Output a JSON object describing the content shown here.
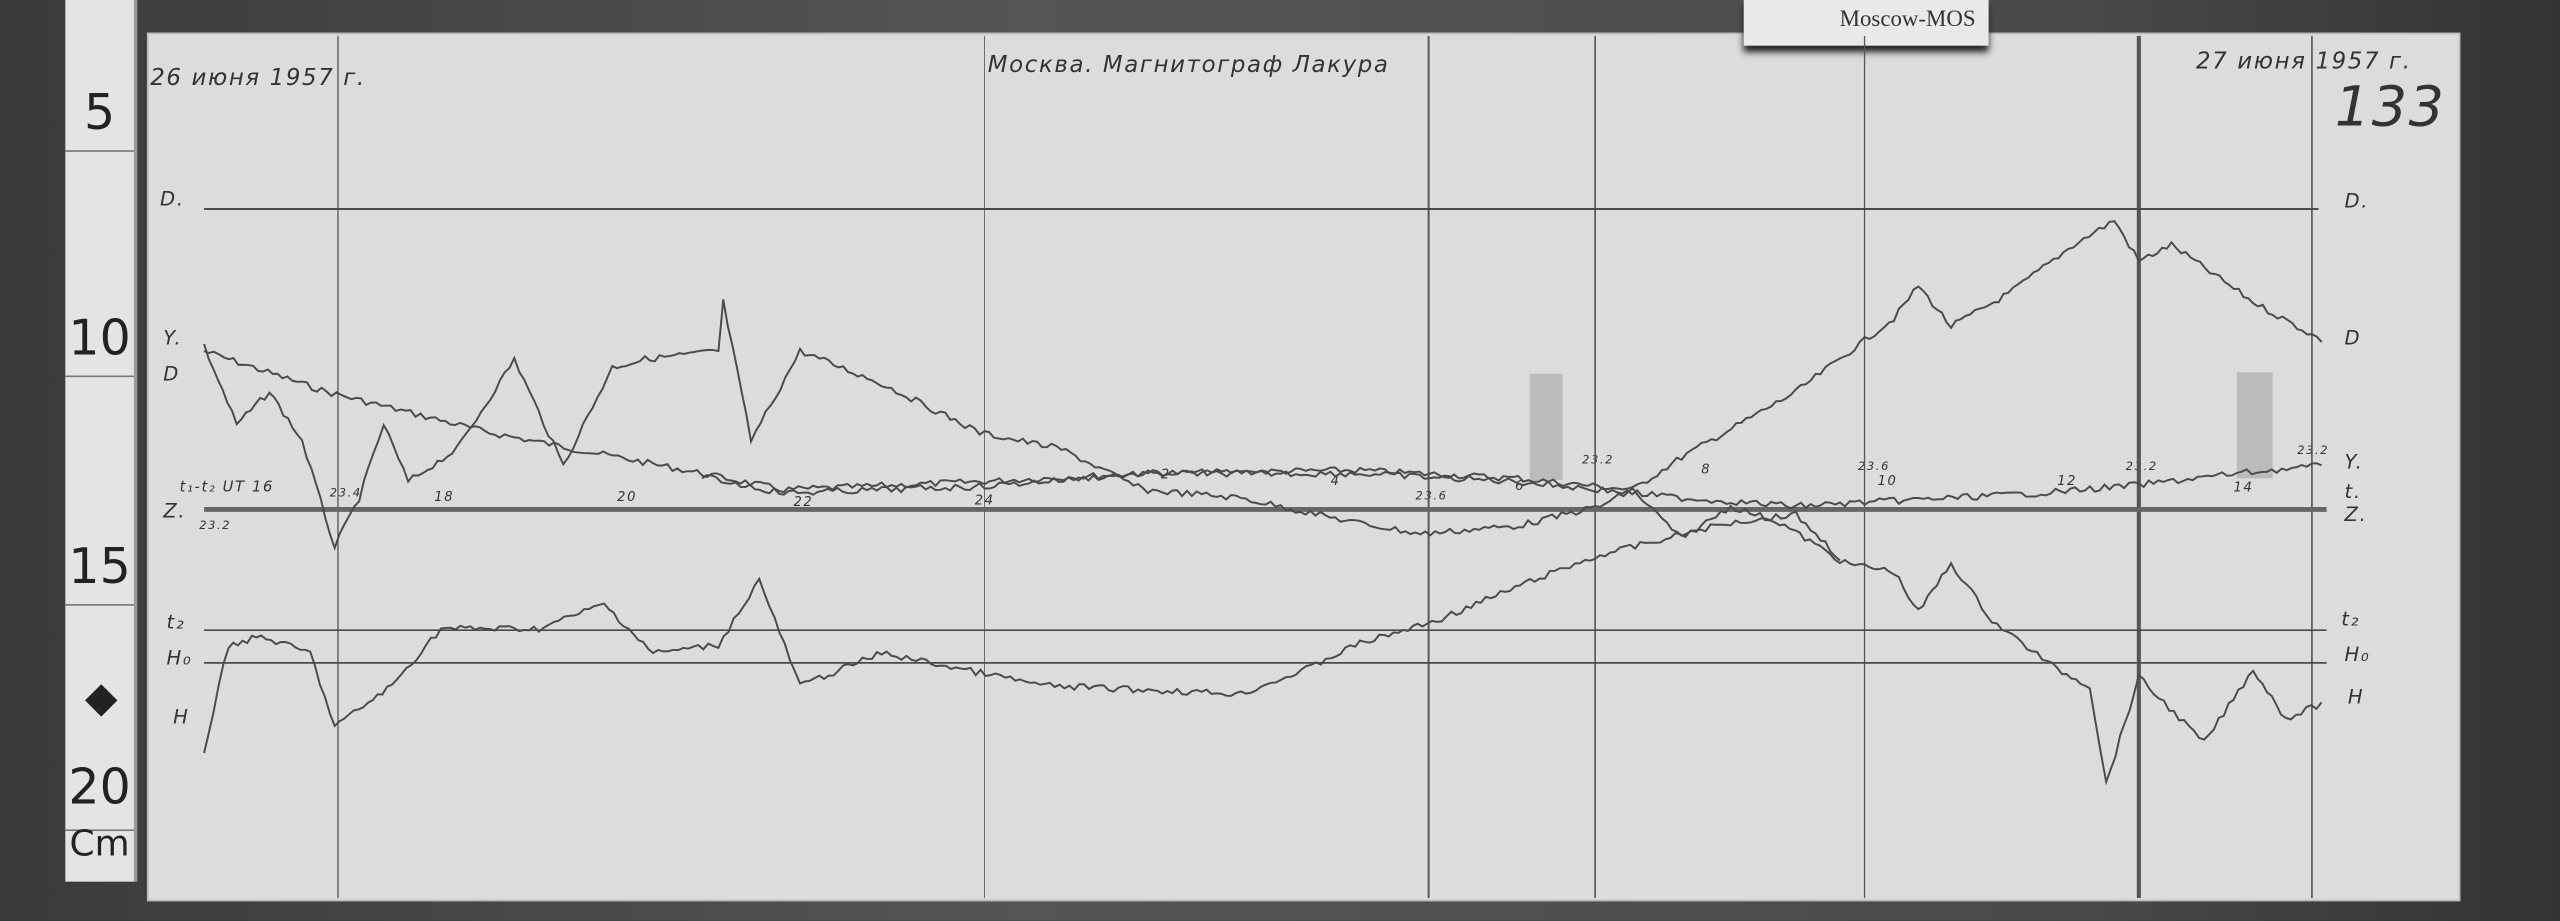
{
  "ruler": {
    "marks": [
      "5",
      "10",
      "15",
      "20"
    ],
    "unit": "Cm"
  },
  "card_label": "Moscow-MOS",
  "header": {
    "title": "Москва. Магнитограф Лакура",
    "date_start": "26 июня 1957 г.",
    "date_end": "27 июня 1957 г.",
    "sheet_number": "133"
  },
  "left_labels": {
    "D": "D.",
    "Y": "Y.",
    "D2": "D",
    "t_ut": "t₁-t₂ UT 16",
    "Z": "Z.",
    "t2": "t₂",
    "H0": "H₀",
    "H": "H"
  },
  "right_labels": {
    "D": "D.",
    "D2": "D",
    "Y": "Y.",
    "t": "t.",
    "Z": "Z.",
    "t2": "t₂",
    "H0": "H₀",
    "H": "H"
  },
  "hour_marks": [
    "18",
    "20",
    "22",
    "24",
    "2",
    "4",
    "6",
    "8",
    "10",
    "12",
    "14"
  ],
  "temperature_marks": [
    "23.4",
    "23.2",
    "23.6",
    "23.2",
    "23.6",
    "23.2",
    "23.2"
  ],
  "traces": [
    "D",
    "Z",
    "Y",
    "H"
  ],
  "colors": {
    "paper": "#dcdcdc",
    "ink": "#4a4a4a",
    "background": "#2e2e2e"
  }
}
